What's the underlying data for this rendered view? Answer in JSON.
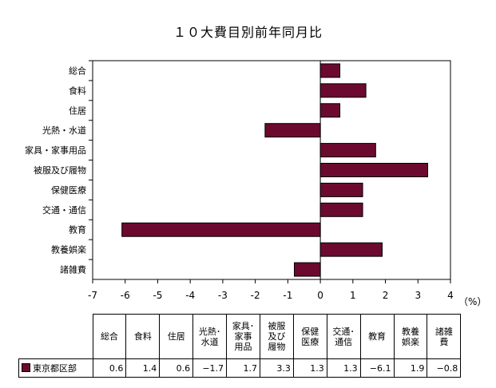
{
  "chart_data": {
    "type": "bar",
    "orientation": "horizontal",
    "title": "１０大費目別前年同月比",
    "categories": [
      "総合",
      "食料",
      "住居",
      "光熱・水道",
      "家具・家事用品",
      "被服及び履物",
      "保健医療",
      "交通・通信",
      "教育",
      "教養娯楽",
      "諸雑費"
    ],
    "table_headers": [
      [
        "総合"
      ],
      [
        "食料"
      ],
      [
        "住居"
      ],
      [
        "光熱･",
        "水道"
      ],
      [
        "家具･",
        "家事",
        "用品"
      ],
      [
        "被服",
        "及び",
        "履物"
      ],
      [
        "保健",
        "医療"
      ],
      [
        "交通･",
        "通信"
      ],
      [
        "教育"
      ],
      [
        "教養",
        "娯楽"
      ],
      [
        "諸雑",
        "費"
      ]
    ],
    "series": [
      {
        "name": "東京都区部",
        "values": [
          0.6,
          1.4,
          0.6,
          -1.7,
          1.7,
          3.3,
          1.3,
          1.3,
          -6.1,
          1.9,
          -0.8
        ],
        "labels": [
          "0.6",
          "1.4",
          "0.6",
          "−1.7",
          "1.7",
          "3.3",
          "1.3",
          "1.3",
          "−6.1",
          "1.9",
          "−0.8"
        ],
        "color": "#6b0a2e"
      }
    ],
    "xlim": [
      -7,
      4
    ],
    "xticks": [
      "-7",
      "-6",
      "-5",
      "-4",
      "-3",
      "-2",
      "-1",
      "0",
      "1",
      "2",
      "3",
      "4"
    ],
    "unit": "（%）",
    "grid": false,
    "legend": "data-table"
  }
}
